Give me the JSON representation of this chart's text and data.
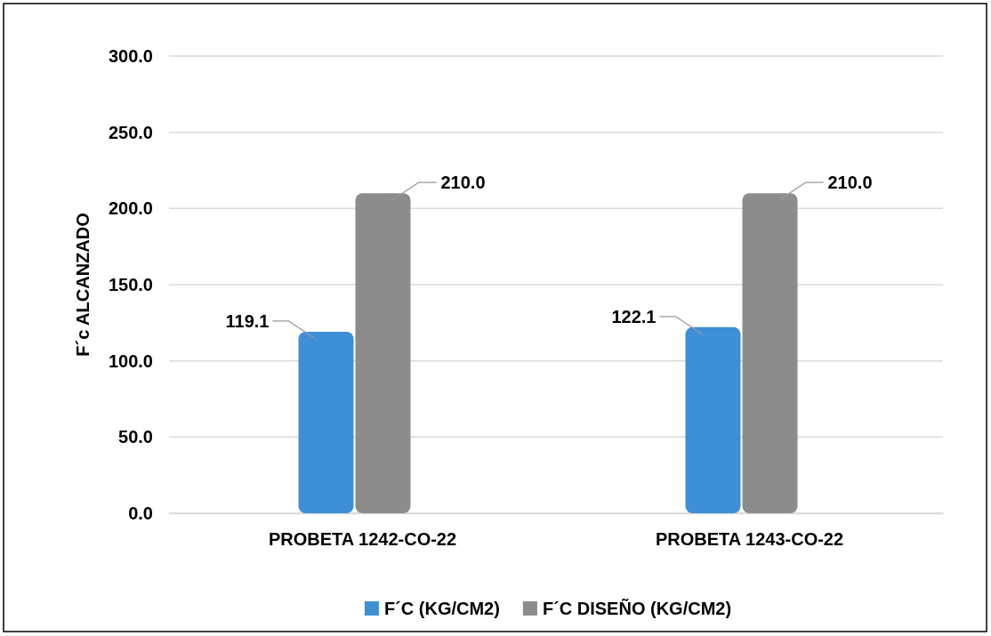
{
  "chart_data": {
    "type": "bar",
    "ylabel": "F´c ALCANZADO",
    "categories": [
      "PROBETA 1242-CO-22",
      "PROBETA 1243-CO-22"
    ],
    "series": [
      {
        "name": "F´C (KG/CM2)",
        "color": "#3d8fd8",
        "values": [
          119.1,
          122.1
        ],
        "value_labels": [
          "119.1",
          "122.1"
        ]
      },
      {
        "name": "F´C DISEÑO (KG/CM2)",
        "color": "#8c8c8c",
        "values": [
          210,
          210
        ],
        "value_labels": [
          "210.0",
          "210.0"
        ]
      }
    ],
    "ylim": [
      0,
      300
    ],
    "yticks": [
      {
        "value": 0,
        "label": "0.0"
      },
      {
        "value": 50,
        "label": "50.0"
      },
      {
        "value": 100,
        "label": "100.0"
      },
      {
        "value": 150,
        "label": "150.0"
      },
      {
        "value": 200,
        "label": "200.0"
      },
      {
        "value": 250,
        "label": "250.0"
      },
      {
        "value": 300,
        "label": "300.0"
      }
    ],
    "grid": "y",
    "legend": "bottom"
  }
}
